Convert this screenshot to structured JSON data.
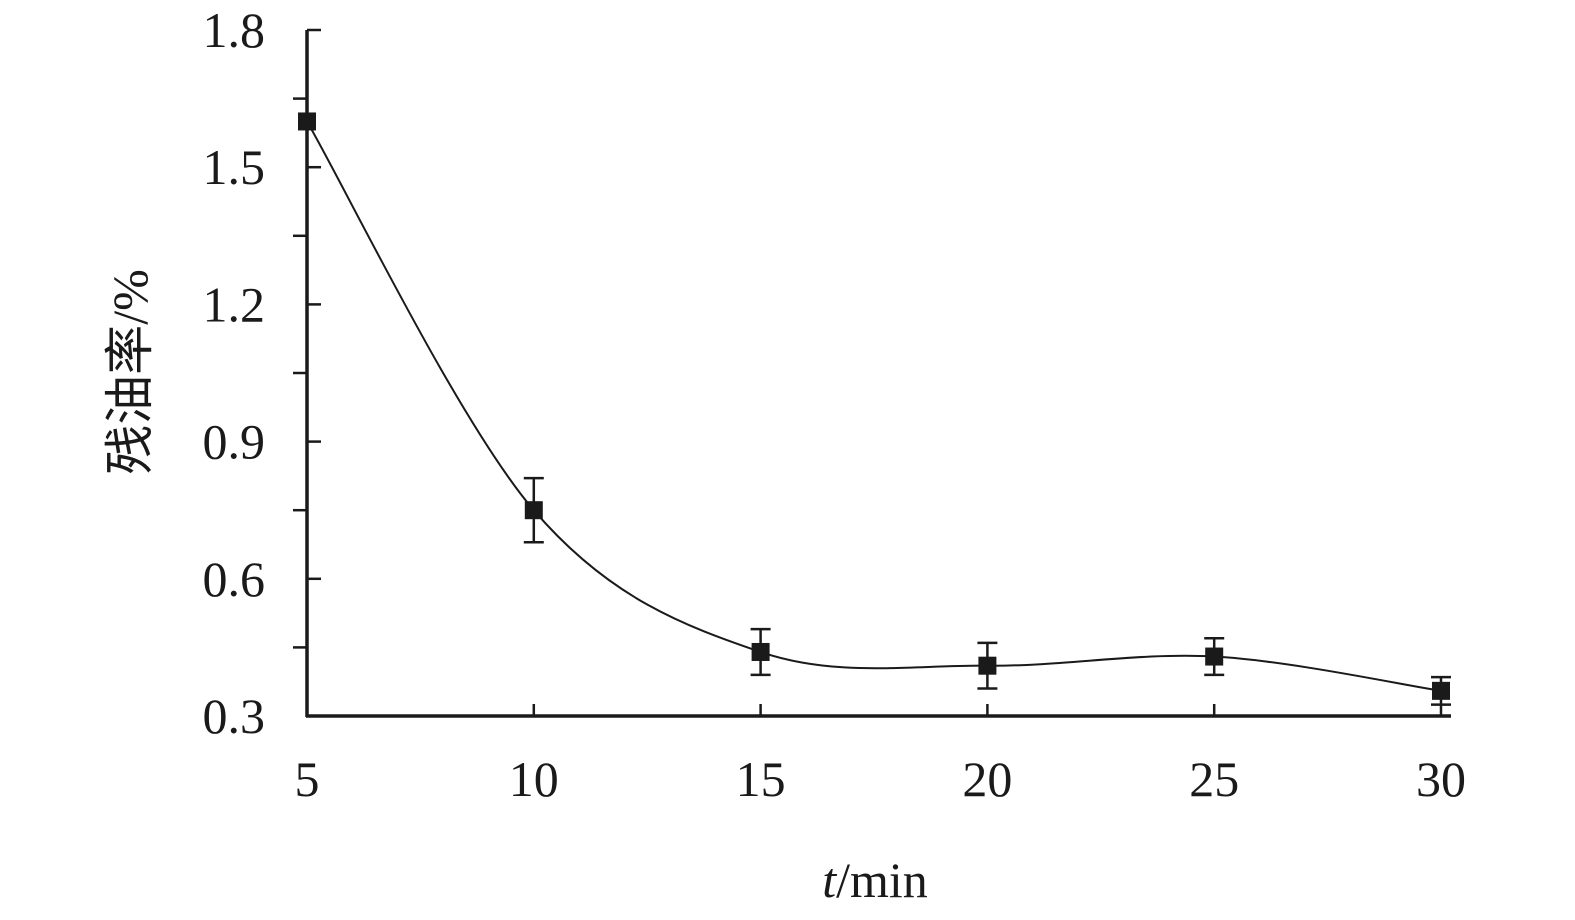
{
  "chart_data": {
    "type": "line",
    "title": "",
    "xlabel_italic": "t",
    "xlabel_rest": "/min",
    "ylabel": "残油率/%",
    "x": [
      5,
      10,
      15,
      20,
      25,
      30
    ],
    "xticks": [
      "5",
      "10",
      "15",
      "20",
      "25",
      "30"
    ],
    "yticks": [
      "0.3",
      "0.6",
      "0.9",
      "1.2",
      "1.5",
      "1.8"
    ],
    "xlim": [
      5,
      30
    ],
    "ylim": [
      0.3,
      1.8
    ],
    "series": [
      {
        "values": [
          1.6,
          0.75,
          0.44,
          0.41,
          0.43,
          0.355
        ],
        "errors": [
          0,
          0.07,
          0.05,
          0.05,
          0.04,
          0.03
        ],
        "marker": "square",
        "smooth": true
      }
    ],
    "grid": false,
    "legend": "none",
    "colors": {
      "line": "#1a1a1a",
      "marker": "#1a1a1a"
    }
  }
}
